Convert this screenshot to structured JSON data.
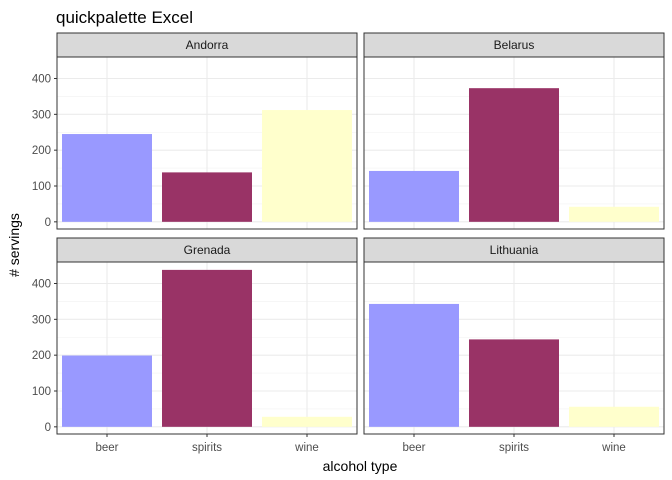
{
  "chart_data": {
    "type": "bar",
    "title": "quickpalette Excel",
    "xlabel": "alcohol type",
    "ylabel": "# servings",
    "categories": [
      "beer",
      "spirits",
      "wine"
    ],
    "category_colors": {
      "beer": "#9999ff",
      "spirits": "#993366",
      "wine": "#ffffcc"
    },
    "ylim": [
      -20,
      460
    ],
    "yticks": [
      0,
      100,
      200,
      300,
      400
    ],
    "grid": true,
    "facets": [
      {
        "name": "Andorra",
        "values": [
          245,
          138,
          312
        ]
      },
      {
        "name": "Belarus",
        "values": [
          142,
          373,
          42
        ]
      },
      {
        "name": "Grenada",
        "values": [
          199,
          438,
          28
        ]
      },
      {
        "name": "Lithuania",
        "values": [
          343,
          244,
          56
        ]
      }
    ]
  }
}
